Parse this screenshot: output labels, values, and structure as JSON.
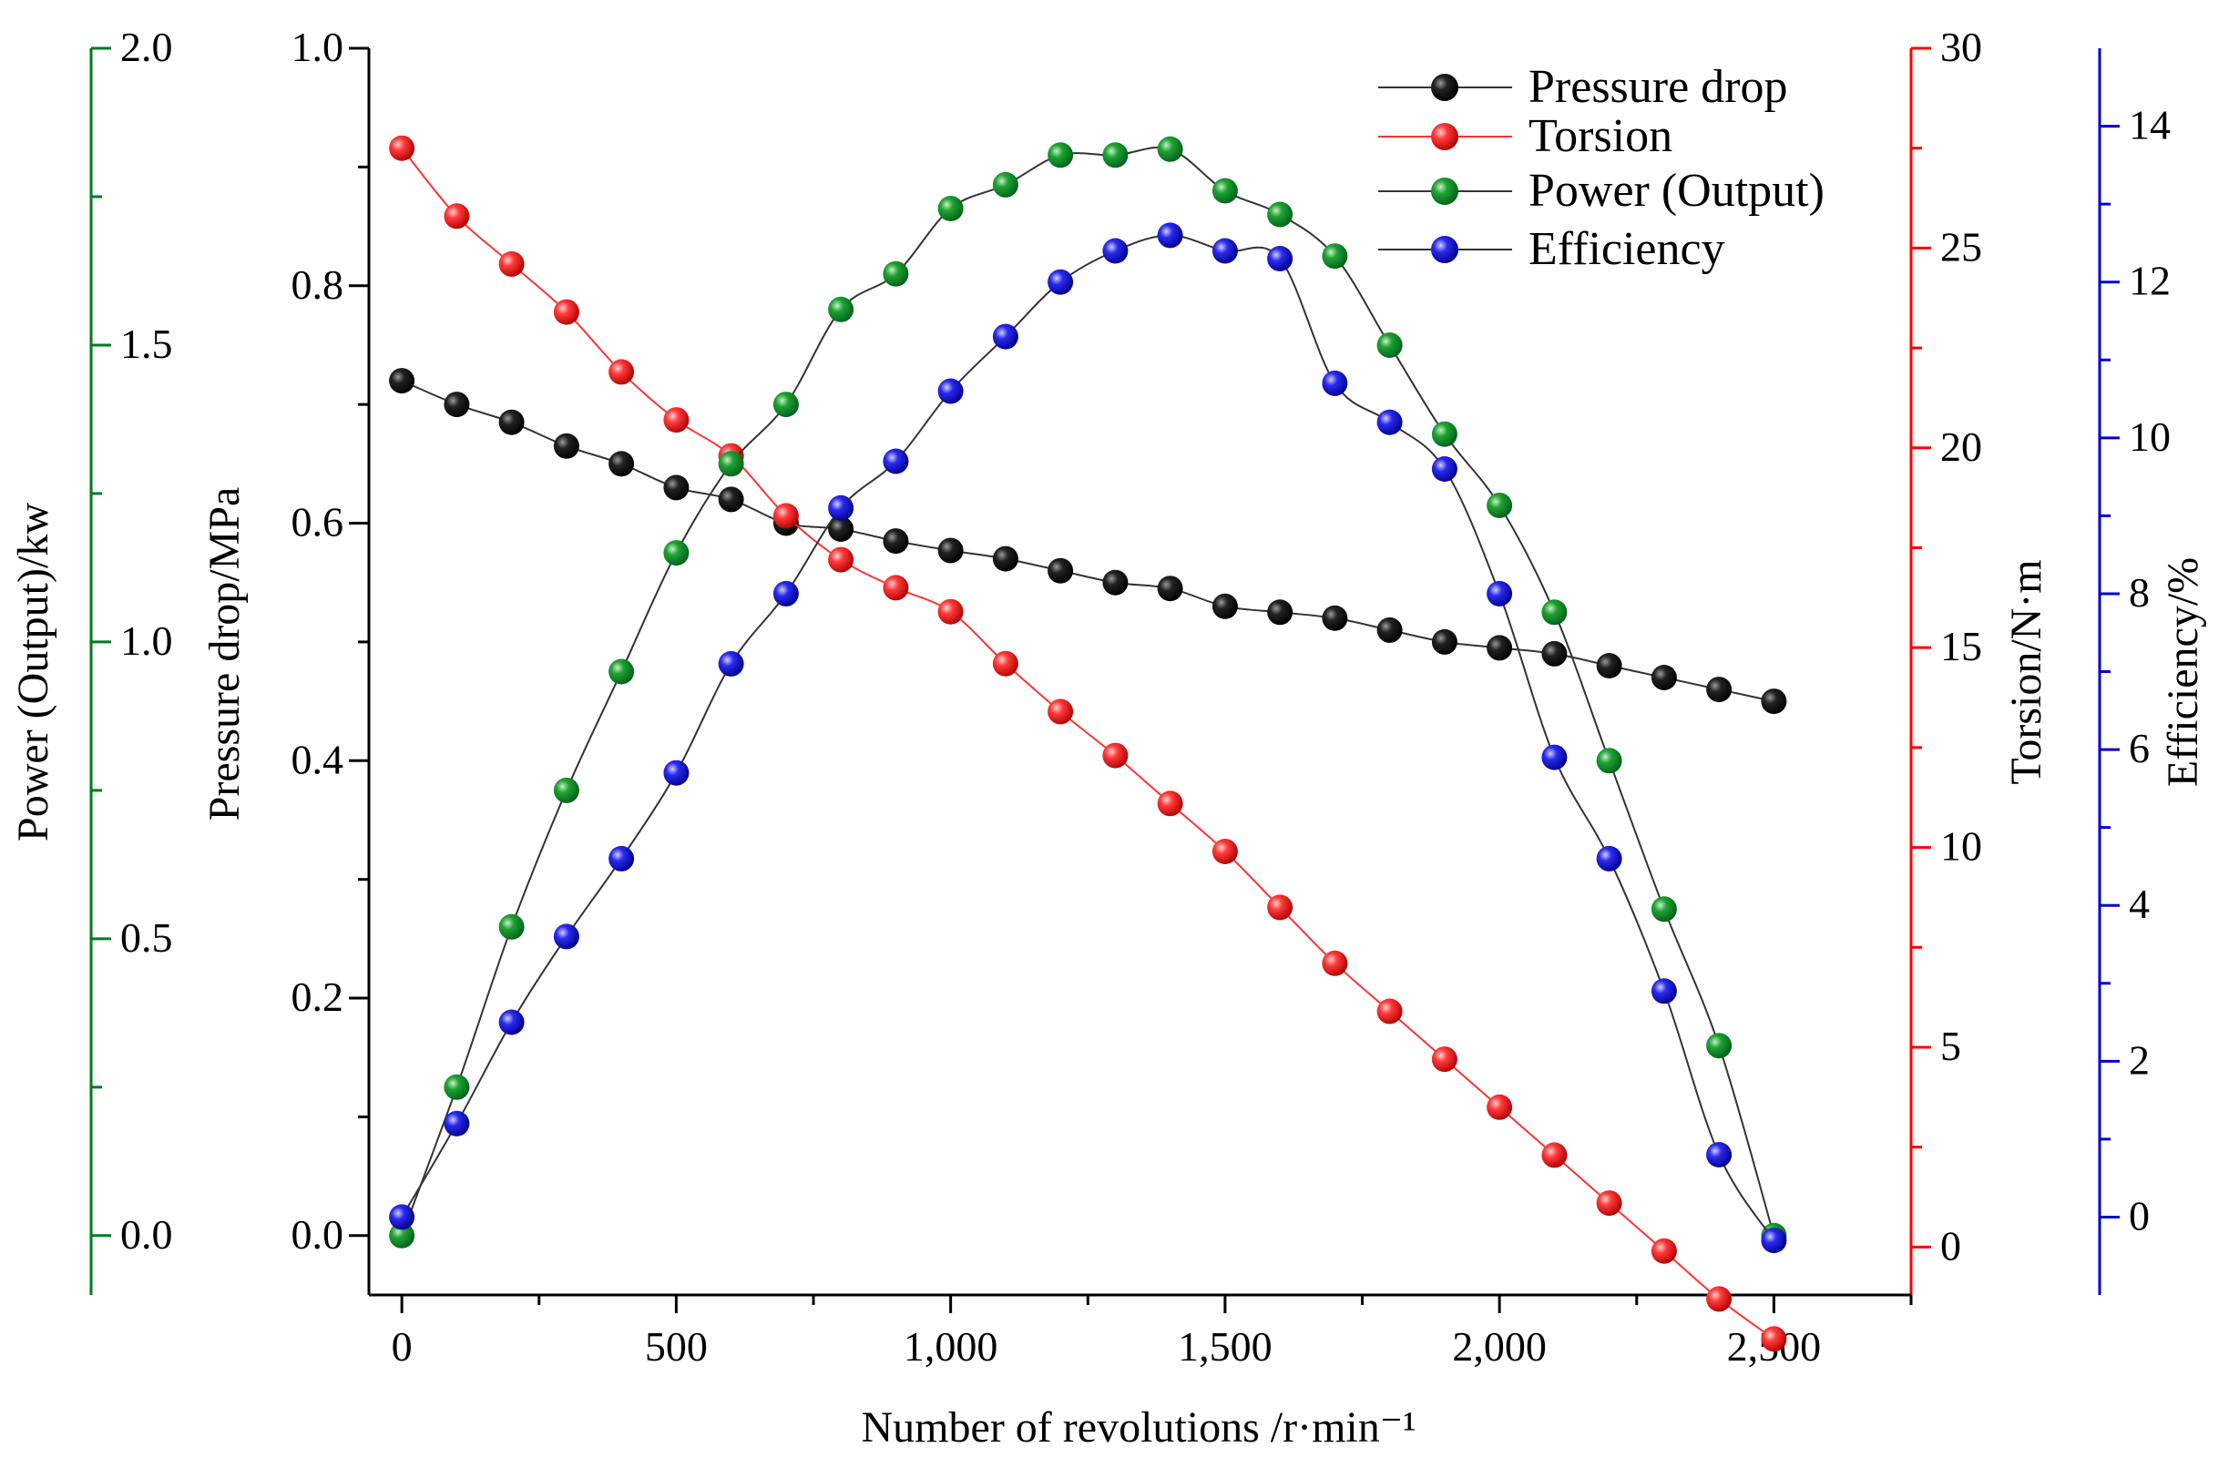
{
  "chart_data": {
    "type": "line",
    "xlabel": "Number of revolutions /r·min⁻¹",
    "xlim": [
      -60,
      2750
    ],
    "x_ticks": [
      0,
      500,
      1000,
      1500,
      2000,
      2500
    ],
    "x_tick_labels": [
      "0",
      "500",
      "1,000",
      "1,500",
      "2,000",
      "2,500"
    ],
    "x": [
      0,
      100,
      200,
      300,
      400,
      500,
      600,
      700,
      800,
      900,
      1000,
      1100,
      1200,
      1300,
      1400,
      1500,
      1600,
      1700,
      1800,
      1900,
      2000,
      2100,
      2200,
      2300,
      2400,
      2500
    ],
    "axes": [
      {
        "id": "power",
        "label": "Power (Output)/kw",
        "color": "#007a22",
        "ylim": [
          -0.1,
          2.0
        ],
        "ticks": [
          0.0,
          0.5,
          1.0,
          1.5,
          2.0
        ],
        "tick_labels": [
          "0.0",
          "0.5",
          "1.0",
          "1.5",
          "2.0"
        ]
      },
      {
        "id": "pressure",
        "label": "Pressure drop/MPa",
        "color": "#000000",
        "ylim": [
          -0.05,
          1.0
        ],
        "ticks": [
          0.0,
          0.2,
          0.4,
          0.6,
          0.8,
          1.0
        ],
        "tick_labels": [
          "0.0",
          "0.2",
          "0.4",
          "0.6",
          "0.8",
          "1.0"
        ]
      },
      {
        "id": "torsion",
        "label": "Torsion/N·m",
        "color": "#ff0000",
        "ylim": [
          -1.2,
          30
        ],
        "ticks": [
          0,
          5,
          10,
          15,
          20,
          25,
          30
        ],
        "tick_labels": [
          "0",
          "5",
          "10",
          "15",
          "20",
          "25",
          "30"
        ]
      },
      {
        "id": "efficiency",
        "label": "Efficiency/%",
        "color": "#0000cc",
        "ylim": [
          -1,
          15
        ],
        "ticks": [
          0,
          2,
          4,
          6,
          8,
          10,
          12,
          14
        ],
        "tick_labels": [
          "0",
          "2",
          "4",
          "6",
          "8",
          "10",
          "12",
          "14"
        ]
      }
    ],
    "series": [
      {
        "name": "Pressure drop",
        "axis": "pressure",
        "marker_color": "#111111",
        "values": [
          0.72,
          0.7,
          0.685,
          0.665,
          0.65,
          0.63,
          0.62,
          0.6,
          0.595,
          0.585,
          0.577,
          0.57,
          0.56,
          0.55,
          0.545,
          0.53,
          0.525,
          0.52,
          0.51,
          0.5,
          0.495,
          0.49,
          0.48,
          0.47,
          0.46,
          0.45
        ]
      },
      {
        "name": "Torsion",
        "axis": "torsion",
        "marker_color": "#ff3333",
        "values": [
          27.5,
          25.8,
          24.6,
          23.4,
          21.9,
          20.7,
          19.8,
          18.3,
          17.2,
          16.5,
          15.9,
          14.6,
          13.4,
          12.3,
          11.1,
          9.9,
          8.5,
          7.1,
          5.9,
          4.7,
          3.5,
          2.3,
          1.1,
          -0.1,
          -1.3,
          -2.3
        ]
      },
      {
        "name": "Power (Output)",
        "axis": "power",
        "marker_color": "#1a9a30",
        "values": [
          0.0,
          0.25,
          0.52,
          0.75,
          0.95,
          1.15,
          1.3,
          1.4,
          1.56,
          1.62,
          1.73,
          1.77,
          1.82,
          1.82,
          1.83,
          1.76,
          1.72,
          1.65,
          1.5,
          1.35,
          1.23,
          1.05,
          0.8,
          0.55,
          0.32,
          0.0
        ]
      },
      {
        "name": "Efficiency",
        "axis": "efficiency",
        "marker_color": "#2020e0",
        "values": [
          0.0,
          1.2,
          2.5,
          3.6,
          4.6,
          5.7,
          7.1,
          8.0,
          9.1,
          9.7,
          10.6,
          11.3,
          12.0,
          12.4,
          12.6,
          12.4,
          12.3,
          10.7,
          10.2,
          9.6,
          8.0,
          5.9,
          4.6,
          2.9,
          0.8,
          -0.3
        ]
      }
    ],
    "legend_location": "top-right"
  }
}
